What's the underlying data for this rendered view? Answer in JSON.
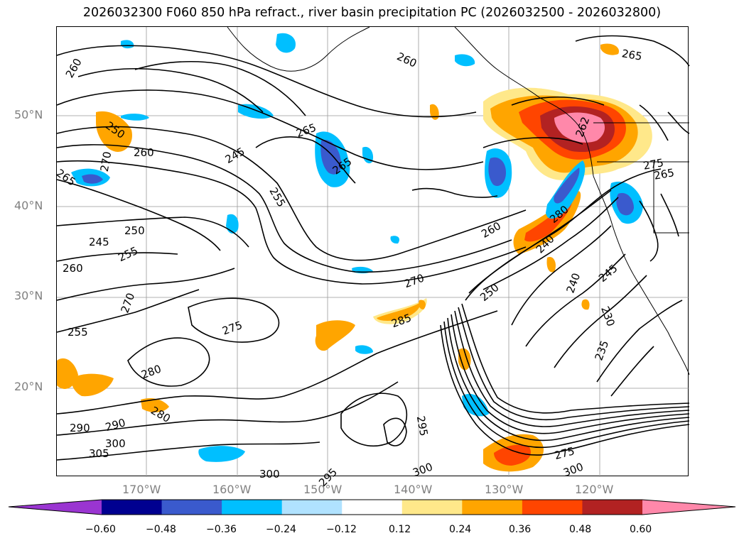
{
  "title": "2026032300 F060 850 hPa refract., river basin precipitation PC (2026032500 - 2026032800)",
  "map": {
    "lat_labels": [
      "50°N",
      "40°N",
      "30°N",
      "20°N"
    ],
    "lon_labels": [
      "170°W",
      "160°W",
      "150°W",
      "140°W",
      "130°W",
      "120°W"
    ],
    "contour_labels": [
      {
        "text": "260"
      },
      {
        "text": "260"
      },
      {
        "text": "265"
      },
      {
        "text": "250"
      },
      {
        "text": "260"
      },
      {
        "text": "245"
      },
      {
        "text": "265"
      },
      {
        "text": "265"
      },
      {
        "text": "265"
      },
      {
        "text": "270"
      },
      {
        "text": "255"
      },
      {
        "text": "250"
      },
      {
        "text": "245"
      },
      {
        "text": "255"
      },
      {
        "text": "260"
      },
      {
        "text": "260"
      },
      {
        "text": "270"
      },
      {
        "text": "285"
      },
      {
        "text": "250"
      },
      {
        "text": "240"
      },
      {
        "text": "240"
      },
      {
        "text": "245"
      },
      {
        "text": "230"
      },
      {
        "text": "235"
      },
      {
        "text": "275"
      },
      {
        "text": "280"
      },
      {
        "text": "290"
      },
      {
        "text": "290"
      },
      {
        "text": "280"
      },
      {
        "text": "300"
      },
      {
        "text": "305"
      },
      {
        "text": "300"
      },
      {
        "text": "295"
      },
      {
        "text": "295"
      },
      {
        "text": "300"
      },
      {
        "text": "300"
      },
      {
        "text": "275"
      },
      {
        "text": "265"
      },
      {
        "text": "275"
      },
      {
        "text": "255"
      },
      {
        "text": "270"
      },
      {
        "text": "280"
      },
      {
        "text": "262"
      }
    ]
  },
  "colorbar": {
    "colors": [
      "#9a35d1",
      "#000090",
      "#3a5acd",
      "#00bfff",
      "#b0e2ff",
      "#ffffff",
      "#ffe88a",
      "#ffa500",
      "#ff4500",
      "#b22222",
      "#ff88aa"
    ],
    "tick_labels": [
      "−0.60",
      "−0.48",
      "−0.36",
      "−0.24",
      "−0.12",
      "0.12",
      "0.24",
      "0.36",
      "0.48",
      "0.60"
    ]
  }
}
